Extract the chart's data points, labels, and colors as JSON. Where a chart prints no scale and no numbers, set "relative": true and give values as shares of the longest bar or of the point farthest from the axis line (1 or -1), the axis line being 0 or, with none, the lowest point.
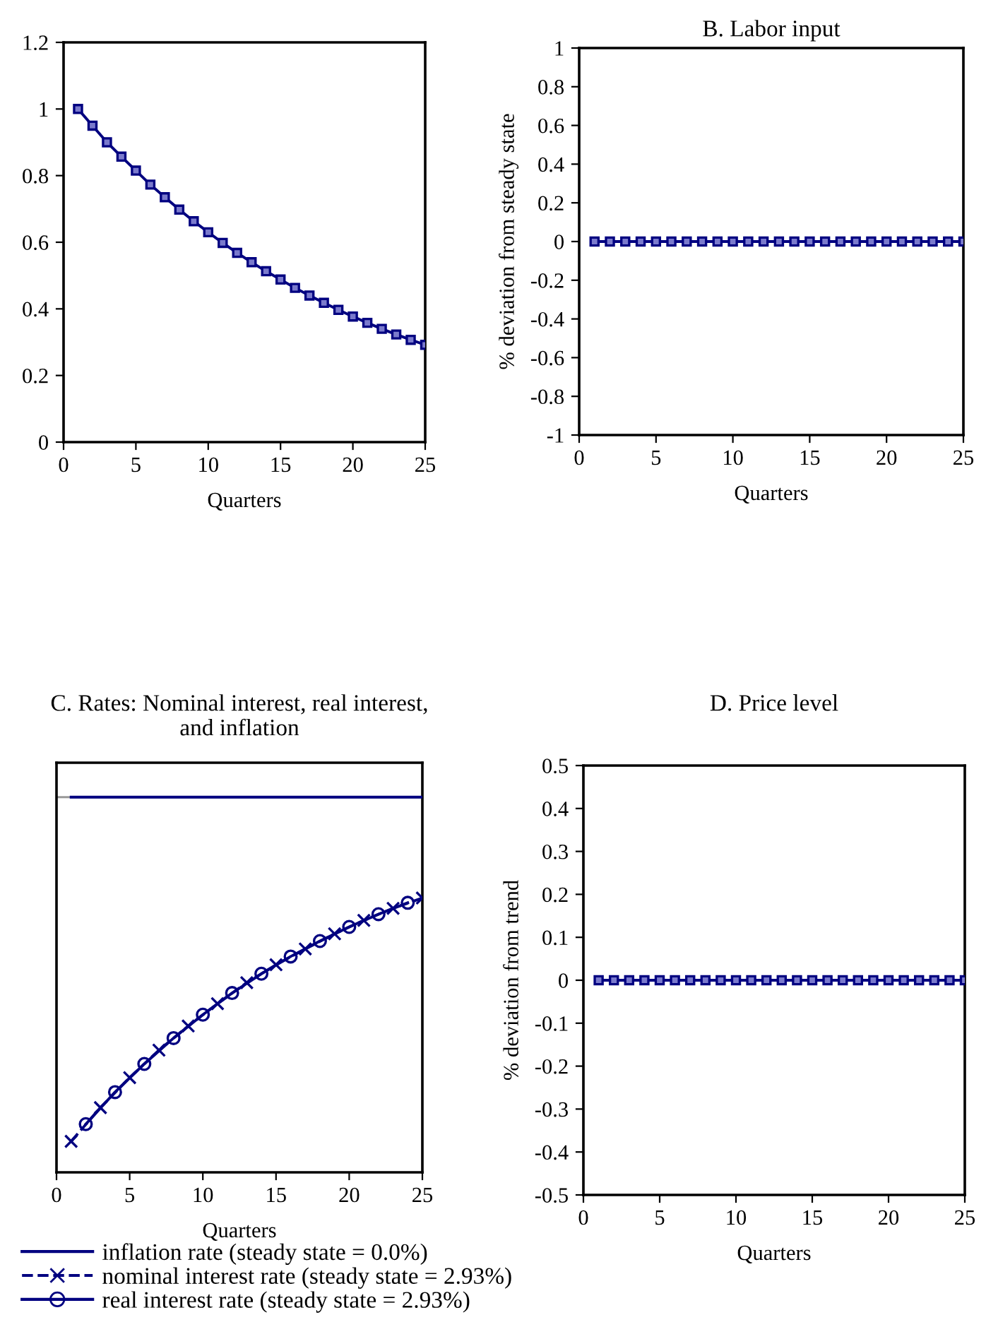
{
  "chart_data": [
    {
      "type": "line",
      "x": [
        1,
        2,
        3,
        4,
        5,
        6,
        7,
        8,
        9,
        10,
        11,
        12,
        13,
        14,
        15,
        16,
        17,
        18,
        19,
        20,
        21,
        22,
        23,
        24,
        25
      ],
      "xlabel": "Quarters",
      "xlim": [
        0,
        25
      ],
      "xticks": [
        0,
        5,
        10,
        15,
        20,
        25
      ],
      "ylim": [
        0,
        1.2
      ],
      "yticks": [
        {
          "value": 0,
          "label": "0"
        },
        {
          "value": 0.2,
          "label": "0.2"
        },
        {
          "value": 0.4,
          "label": "0.4"
        },
        {
          "value": 0.6,
          "label": "0.6"
        },
        {
          "value": 0.8,
          "label": "0.8"
        },
        {
          "value": 1,
          "label": "1"
        },
        {
          "value": 1.2,
          "label": "1.2"
        }
      ],
      "marker": "square",
      "line_style": "solid",
      "grid": false,
      "legend": false,
      "series": [
        {
          "color": "#000080",
          "values": [
            1,
            0.95,
            0.9,
            0.857,
            0.815,
            0.773,
            0.735,
            0.698,
            0.663,
            0.63,
            0.598,
            0.568,
            0.54,
            0.513,
            0.488,
            0.463,
            0.44,
            0.418,
            0.397,
            0.377,
            0.358,
            0.34,
            0.323,
            0.307,
            0.292
          ]
        }
      ]
    },
    {
      "type": "line",
      "title": "B. Labor input",
      "x": [
        1,
        2,
        3,
        4,
        5,
        6,
        7,
        8,
        9,
        10,
        11,
        12,
        13,
        14,
        15,
        16,
        17,
        18,
        19,
        20,
        21,
        22,
        23,
        24,
        25
      ],
      "xlabel": "Quarters",
      "ylabel": "% deviation from steady state",
      "xlim": [
        0,
        25
      ],
      "xticks": [
        0,
        5,
        10,
        15,
        20,
        25
      ],
      "ylim": [
        -1,
        1
      ],
      "yticks": [
        -1,
        -0.8,
        -0.6,
        -0.4,
        -0.2,
        0,
        0.2,
        0.4,
        0.6,
        0.8,
        1
      ],
      "marker": "square",
      "line_style": "solid",
      "grid": false,
      "legend": false,
      "series": [
        {
          "color": "#000080",
          "values": [
            0,
            0,
            0,
            0,
            0,
            0,
            0,
            0,
            0,
            0,
            0,
            0,
            0,
            0,
            0,
            0,
            0,
            0,
            0,
            0,
            0,
            0,
            0,
            0,
            0
          ]
        }
      ]
    },
    {
      "type": "line",
      "title": "C. Rates: Nominal interest, real interest,\nand inflation",
      "x": [
        1,
        2,
        3,
        4,
        5,
        6,
        7,
        8,
        9,
        10,
        11,
        12,
        13,
        14,
        15,
        16,
        17,
        18,
        19,
        20,
        21,
        22,
        23,
        24,
        25
      ],
      "xlabel": "Quarters",
      "xlim": [
        0,
        25
      ],
      "xticks": [
        0,
        5,
        10,
        15,
        20,
        25
      ],
      "relative": true,
      "grid": false,
      "legend": "bottom",
      "series": [
        {
          "name": "inflation rate (steady state = 0.0%)",
          "color": "#000080",
          "marker": "none",
          "line_style": "solid",
          "values": [
            0,
            0,
            0,
            0,
            0,
            0,
            0,
            0,
            0,
            0,
            0,
            0,
            0,
            0,
            0,
            0,
            0,
            0,
            0,
            0,
            0,
            0,
            0,
            0,
            0
          ]
        },
        {
          "name": "nominal interest rate (steady state = 2.93%)",
          "color": "#000080",
          "marker": "cross",
          "line_style": "dashed",
          "x": [
            1,
            3,
            5,
            7,
            9,
            11,
            13,
            15,
            17,
            19,
            21,
            23,
            25
          ],
          "values": [
            -1,
            -0.902,
            -0.815,
            -0.735,
            -0.665,
            -0.6,
            -0.539,
            -0.487,
            -0.441,
            -0.397,
            -0.358,
            -0.323,
            -0.293
          ]
        },
        {
          "name": "real interest rate (steady state = 2.93%)",
          "color": "#000080",
          "marker": "circle",
          "line_style": "solid",
          "x": [
            2,
            4,
            6,
            8,
            10,
            12,
            14,
            16,
            18,
            20,
            22,
            24
          ],
          "values": [
            -0.95,
            -0.857,
            -0.775,
            -0.7,
            -0.632,
            -0.569,
            -0.513,
            -0.463,
            -0.418,
            -0.377,
            -0.34,
            -0.307
          ]
        }
      ]
    },
    {
      "type": "line",
      "title": "D. Price level",
      "x": [
        1,
        2,
        3,
        4,
        5,
        6,
        7,
        8,
        9,
        10,
        11,
        12,
        13,
        14,
        15,
        16,
        17,
        18,
        19,
        20,
        21,
        22,
        23,
        24,
        25
      ],
      "xlabel": "Quarters",
      "ylabel": "% deviation from trend",
      "xlim": [
        0,
        25
      ],
      "xticks": [
        0,
        5,
        10,
        15,
        20,
        25
      ],
      "ylim": [
        -0.5,
        0.5
      ],
      "yticks": [
        -0.5,
        -0.4,
        -0.3,
        -0.2,
        -0.1,
        0,
        0.1,
        0.2,
        0.3,
        0.4,
        0.5
      ],
      "marker": "square",
      "line_style": "solid",
      "grid": false,
      "legend": false,
      "series": [
        {
          "color": "#000080",
          "values": [
            0,
            0,
            0,
            0,
            0,
            0,
            0,
            0,
            0,
            0,
            0,
            0,
            0,
            0,
            0,
            0,
            0,
            0,
            0,
            0,
            0,
            0,
            0,
            0,
            0
          ]
        }
      ]
    }
  ]
}
